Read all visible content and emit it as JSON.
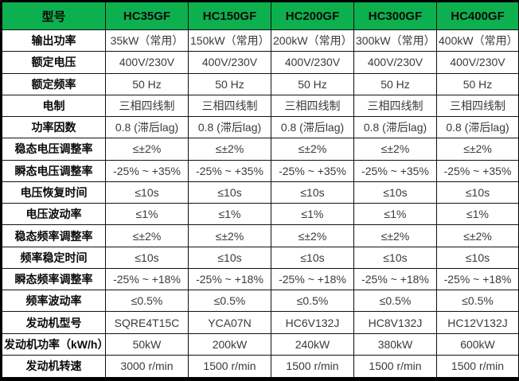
{
  "table": {
    "columns": [
      "型号",
      "HC35GF",
      "HC150GF",
      "HC200GF",
      "HC300GF",
      "HC400GF"
    ],
    "rows": [
      {
        "label": "输出功率",
        "values": [
          "35kW（常用）",
          "150kW（常用）",
          "200kW（常用）",
          "300kW（常用）",
          "400kW（常用）"
        ]
      },
      {
        "label": "额定电压",
        "values": [
          "400V/230V",
          "400V/230V",
          "400V/230V",
          "400V/230V",
          "400V/230V"
        ]
      },
      {
        "label": "额定频率",
        "values": [
          "50 Hz",
          "50 Hz",
          "50 Hz",
          "50 Hz",
          "50 Hz"
        ]
      },
      {
        "label": "电制",
        "values": [
          "三相四线制",
          "三相四线制",
          "三相四线制",
          "三相四线制",
          "三相四线制"
        ]
      },
      {
        "label": "功率因数",
        "values": [
          "0.8 (滞后lag)",
          "0.8 (滞后lag)",
          "0.8 (滞后lag)",
          "0.8 (滞后lag)",
          "0.8 (滞后lag)"
        ]
      },
      {
        "label": "稳态电压调整率",
        "values": [
          "≤±2%",
          "≤±2%",
          "≤±2%",
          "≤±2%",
          "≤±2%"
        ]
      },
      {
        "label": "瞬态电压调整率",
        "values": [
          "-25% ~ +35%",
          "-25% ~ +35%",
          "-25% ~ +35%",
          "-25% ~ +35%",
          "-25% ~ +35%"
        ]
      },
      {
        "label": "电压恢复时间",
        "values": [
          "≤10s",
          "≤10s",
          "≤10s",
          "≤10s",
          "≤10s"
        ]
      },
      {
        "label": "电压波动率",
        "values": [
          "≤1%",
          "≤1%",
          "≤1%",
          "≤1%",
          "≤1%"
        ]
      },
      {
        "label": "稳态频率调整率",
        "values": [
          "≤±2%",
          "≤±2%",
          "≤±2%",
          "≤±2%",
          "≤±2%"
        ]
      },
      {
        "label": "频率稳定时间",
        "values": [
          "≤10s",
          "≤10s",
          "≤10s",
          "≤10s",
          "≤10s"
        ]
      },
      {
        "label": "瞬态频率调整率",
        "values": [
          "-25% ~ +18%",
          "-25% ~ +18%",
          "-25% ~ +18%",
          "-25% ~ +18%",
          "-25% ~ +18%"
        ]
      },
      {
        "label": "频率波动率",
        "values": [
          "≤0.5%",
          "≤0.5%",
          "≤0.5%",
          "≤0.5%",
          "≤0.5%"
        ]
      },
      {
        "label": "发动机型号",
        "values": [
          "SQRE4T15C",
          "YCA07N",
          "HC6V132J",
          "HC8V132J",
          "HC12V132J"
        ]
      },
      {
        "label": "发动机功率（kW/h）",
        "values": [
          "50kW",
          "200kW",
          "240kW",
          "380kW",
          "600kW"
        ]
      },
      {
        "label": "发动机转速",
        "values": [
          "3000 r/min",
          "1500 r/min",
          "1500 r/min",
          "1500 r/min",
          "1500 r/min"
        ]
      }
    ]
  },
  "colors": {
    "header_bg": "#0db04e",
    "border": "#111111",
    "label_text": "#0a0a0a",
    "value_text": "#3a3a3a"
  }
}
